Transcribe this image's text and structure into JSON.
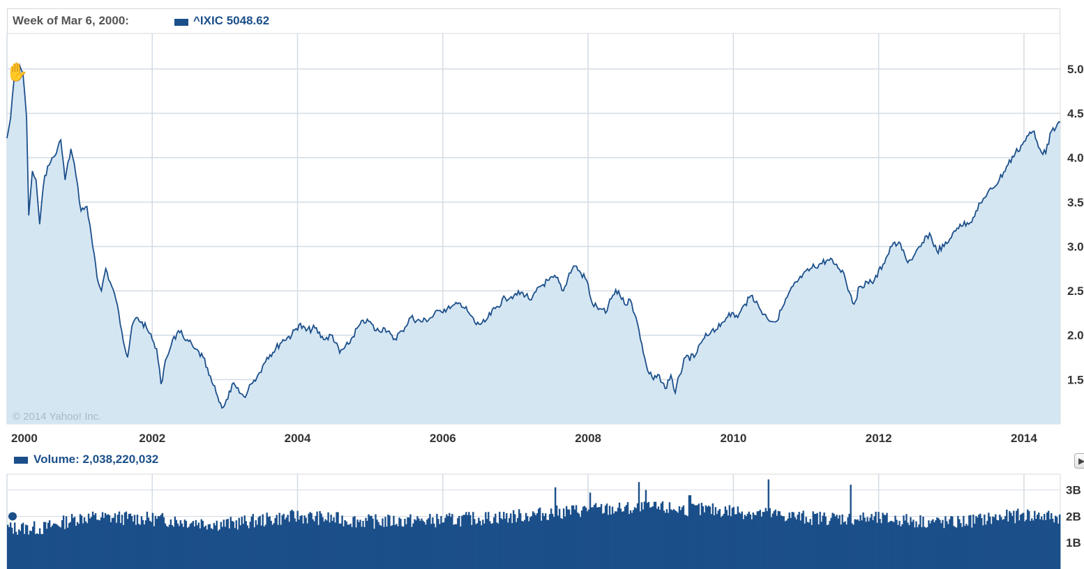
{
  "header": {
    "week_label": "Week of Mar 6, 2000:",
    "price_label": "^IXIC 5048.62"
  },
  "copyright": "© 2014 Yahoo! Inc.",
  "volume": {
    "label": "Volume: 2,038,220,032",
    "y_ticks": [
      "3B",
      "2B",
      "1B"
    ]
  },
  "colors": {
    "line": "#1b4f8a",
    "area": "#d5e6f3",
    "grid": "#d3dbe4",
    "volume": "#1b4f8a"
  },
  "chart_data": [
    {
      "type": "area",
      "series": [
        {
          "name": "^IXIC"
        }
      ],
      "x_ticks": [
        "2000",
        "2002",
        "2004",
        "2006",
        "2008",
        "2010",
        "2012",
        "2014"
      ],
      "y_ticks": [
        "5.0",
        "4.5",
        "4.0",
        "3.5",
        "3.0",
        "2.5",
        "2.0",
        "1.5"
      ],
      "y_unit_note": "thousands",
      "ylim": [
        1.0,
        5.4
      ],
      "xlim": [
        2000.0,
        2014.5
      ],
      "grid": true,
      "points": [
        [
          2000.0,
          4.22
        ],
        [
          2000.05,
          4.45
        ],
        [
          2000.1,
          4.9
        ],
        [
          2000.17,
          5.05
        ],
        [
          2000.22,
          4.95
        ],
        [
          2000.27,
          4.45
        ],
        [
          2000.3,
          3.35
        ],
        [
          2000.35,
          3.85
        ],
        [
          2000.4,
          3.75
        ],
        [
          2000.45,
          3.25
        ],
        [
          2000.52,
          3.8
        ],
        [
          2000.6,
          3.95
        ],
        [
          2000.68,
          4.05
        ],
        [
          2000.74,
          4.2
        ],
        [
          2000.8,
          3.75
        ],
        [
          2000.88,
          4.1
        ],
        [
          2000.95,
          3.8
        ],
        [
          2001.02,
          3.4
        ],
        [
          2001.1,
          3.45
        ],
        [
          2001.18,
          3.0
        ],
        [
          2001.24,
          2.65
        ],
        [
          2001.3,
          2.5
        ],
        [
          2001.36,
          2.75
        ],
        [
          2001.42,
          2.6
        ],
        [
          2001.5,
          2.4
        ],
        [
          2001.58,
          2.05
        ],
        [
          2001.66,
          1.75
        ],
        [
          2001.72,
          2.1
        ],
        [
          2001.78,
          2.2
        ],
        [
          2001.86,
          2.15
        ],
        [
          2001.94,
          2.05
        ],
        [
          2002.0,
          1.95
        ],
        [
          2002.06,
          1.85
        ],
        [
          2002.12,
          1.45
        ],
        [
          2002.2,
          1.75
        ],
        [
          2002.28,
          1.95
        ],
        [
          2002.38,
          2.03
        ],
        [
          2002.48,
          1.95
        ],
        [
          2002.58,
          1.85
        ],
        [
          2002.7,
          1.75
        ],
        [
          2002.78,
          1.55
        ],
        [
          2002.88,
          1.35
        ],
        [
          2002.96,
          1.18
        ],
        [
          2003.04,
          1.28
        ],
        [
          2003.1,
          1.45
        ],
        [
          2003.2,
          1.35
        ],
        [
          2003.28,
          1.3
        ],
        [
          2003.36,
          1.45
        ],
        [
          2003.48,
          1.58
        ],
        [
          2003.58,
          1.75
        ],
        [
          2003.7,
          1.85
        ],
        [
          2003.8,
          1.95
        ],
        [
          2003.92,
          2.0
        ],
        [
          2004.02,
          2.12
        ],
        [
          2004.12,
          2.05
        ],
        [
          2004.24,
          2.08
        ],
        [
          2004.36,
          1.95
        ],
        [
          2004.48,
          2.0
        ],
        [
          2004.58,
          1.8
        ],
        [
          2004.7,
          1.9
        ],
        [
          2004.84,
          2.1
        ],
        [
          2004.96,
          2.18
        ],
        [
          2005.08,
          2.05
        ],
        [
          2005.2,
          2.08
        ],
        [
          2005.32,
          1.95
        ],
        [
          2005.44,
          2.05
        ],
        [
          2005.56,
          2.2
        ],
        [
          2005.7,
          2.15
        ],
        [
          2005.84,
          2.2
        ],
        [
          2005.96,
          2.28
        ],
        [
          2006.1,
          2.3
        ],
        [
          2006.24,
          2.36
        ],
        [
          2006.36,
          2.25
        ],
        [
          2006.46,
          2.12
        ],
        [
          2006.58,
          2.15
        ],
        [
          2006.72,
          2.3
        ],
        [
          2006.86,
          2.42
        ],
        [
          2006.98,
          2.45
        ],
        [
          2007.1,
          2.48
        ],
        [
          2007.22,
          2.4
        ],
        [
          2007.34,
          2.55
        ],
        [
          2007.46,
          2.62
        ],
        [
          2007.56,
          2.65
        ],
        [
          2007.66,
          2.5
        ],
        [
          2007.74,
          2.7
        ],
        [
          2007.82,
          2.78
        ],
        [
          2007.9,
          2.7
        ],
        [
          2007.98,
          2.62
        ],
        [
          2008.06,
          2.35
        ],
        [
          2008.16,
          2.3
        ],
        [
          2008.24,
          2.25
        ],
        [
          2008.34,
          2.45
        ],
        [
          2008.42,
          2.5
        ],
        [
          2008.5,
          2.35
        ],
        [
          2008.58,
          2.4
        ],
        [
          2008.66,
          2.2
        ],
        [
          2008.74,
          1.9
        ],
        [
          2008.82,
          1.6
        ],
        [
          2008.9,
          1.5
        ],
        [
          2008.98,
          1.55
        ],
        [
          2009.06,
          1.4
        ],
        [
          2009.14,
          1.55
        ],
        [
          2009.2,
          1.35
        ],
        [
          2009.26,
          1.55
        ],
        [
          2009.34,
          1.75
        ],
        [
          2009.46,
          1.75
        ],
        [
          2009.58,
          1.95
        ],
        [
          2009.7,
          2.05
        ],
        [
          2009.82,
          2.1
        ],
        [
          2009.94,
          2.25
        ],
        [
          2010.06,
          2.2
        ],
        [
          2010.16,
          2.35
        ],
        [
          2010.26,
          2.45
        ],
        [
          2010.36,
          2.3
        ],
        [
          2010.46,
          2.2
        ],
        [
          2010.58,
          2.15
        ],
        [
          2010.7,
          2.35
        ],
        [
          2010.82,
          2.55
        ],
        [
          2010.94,
          2.65
        ],
        [
          2011.06,
          2.75
        ],
        [
          2011.18,
          2.8
        ],
        [
          2011.3,
          2.85
        ],
        [
          2011.42,
          2.8
        ],
        [
          2011.52,
          2.7
        ],
        [
          2011.6,
          2.48
        ],
        [
          2011.66,
          2.35
        ],
        [
          2011.74,
          2.55
        ],
        [
          2011.84,
          2.6
        ],
        [
          2011.94,
          2.62
        ],
        [
          2012.06,
          2.8
        ],
        [
          2012.18,
          3.0
        ],
        [
          2012.28,
          3.05
        ],
        [
          2012.38,
          2.85
        ],
        [
          2012.46,
          2.85
        ],
        [
          2012.58,
          3.0
        ],
        [
          2012.7,
          3.15
        ],
        [
          2012.8,
          2.95
        ],
        [
          2012.9,
          3.0
        ],
        [
          2013.0,
          3.1
        ],
        [
          2013.12,
          3.25
        ],
        [
          2013.24,
          3.25
        ],
        [
          2013.34,
          3.4
        ],
        [
          2013.46,
          3.55
        ],
        [
          2013.56,
          3.65
        ],
        [
          2013.66,
          3.75
        ],
        [
          2013.76,
          3.9
        ],
        [
          2013.88,
          4.05
        ],
        [
          2013.98,
          4.15
        ],
        [
          2014.06,
          4.25
        ],
        [
          2014.14,
          4.3
        ],
        [
          2014.22,
          4.1
        ],
        [
          2014.3,
          4.05
        ],
        [
          2014.38,
          4.3
        ],
        [
          2014.46,
          4.38
        ],
        [
          2014.5,
          4.4
        ]
      ]
    },
    {
      "type": "bar",
      "series": [
        {
          "name": "Volume"
        }
      ],
      "ylim_billions": [
        0,
        3.6
      ],
      "y_ticks": [
        "3B",
        "2B",
        "1B"
      ],
      "xlim": [
        2000.0,
        2014.5
      ],
      "bar_count": 756,
      "anchors_billions": [
        [
          2000.0,
          1.55
        ],
        [
          2000.5,
          1.55
        ],
        [
          2001.0,
          1.95
        ],
        [
          2001.5,
          1.95
        ],
        [
          2002.0,
          1.9
        ],
        [
          2003.0,
          1.7
        ],
        [
          2004.0,
          2.0
        ],
        [
          2005.0,
          1.8
        ],
        [
          2006.0,
          1.85
        ],
        [
          2007.0,
          2.0
        ],
        [
          2008.0,
          2.25
        ],
        [
          2009.0,
          2.3
        ],
        [
          2010.0,
          2.2
        ],
        [
          2011.0,
          1.95
        ],
        [
          2012.0,
          1.9
        ],
        [
          2013.0,
          1.75
        ],
        [
          2014.0,
          2.05
        ],
        [
          2014.5,
          1.95
        ]
      ],
      "spikes_billions": [
        [
          2007.55,
          3.1
        ],
        [
          2008.03,
          2.9
        ],
        [
          2008.7,
          3.3
        ],
        [
          2008.8,
          3.0
        ],
        [
          2010.48,
          3.4
        ],
        [
          2011.62,
          3.2
        ],
        [
          2009.4,
          2.8
        ]
      ]
    }
  ]
}
